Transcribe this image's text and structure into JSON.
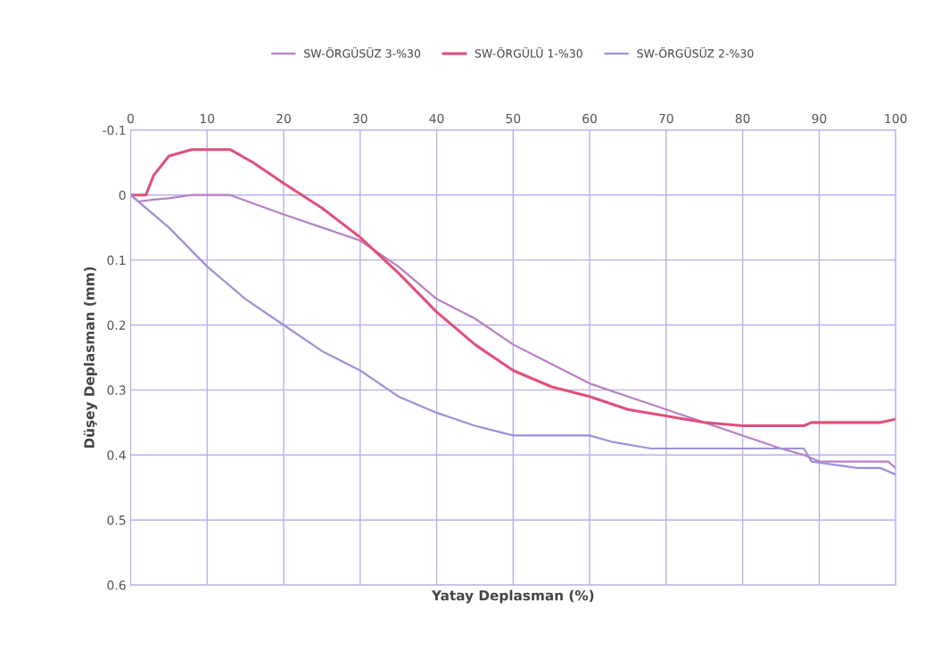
{
  "chart_data": {
    "type": "line",
    "xlabel": "Yatay Deplasman (%)",
    "ylabel": "Düşey Deplasman (mm)",
    "xlim": [
      0,
      100
    ],
    "xticks": [
      0,
      10,
      20,
      30,
      40,
      50,
      60,
      70,
      80,
      90,
      100
    ],
    "ylim": [
      0.6,
      -0.1
    ],
    "yticks": [
      -0.1,
      0,
      0.1,
      0.2,
      0.3,
      0.4,
      0.5,
      0.6
    ],
    "grid": true,
    "legend": "top",
    "marker": "none",
    "line_style": "solid",
    "series": [
      {
        "name": "SW-ÖRGÜSÜZ 3-%30",
        "color": "#b87fc4",
        "x": [
          0,
          1,
          3,
          5,
          8,
          13,
          20,
          25,
          30,
          35,
          40,
          45,
          50,
          55,
          60,
          65,
          70,
          75,
          80,
          85,
          88,
          90,
          95,
          99,
          100
        ],
        "values": [
          0,
          0.01,
          0.007,
          0.005,
          0,
          0,
          0.03,
          0.05,
          0.07,
          0.11,
          0.16,
          0.19,
          0.23,
          0.26,
          0.29,
          0.31,
          0.33,
          0.35,
          0.37,
          0.39,
          0.4,
          0.41,
          0.41,
          0.41,
          0.42
        ]
      },
      {
        "name": "SW-ÖRGÜLÜ 1-%30",
        "color": "#e0507a",
        "x": [
          0,
          2,
          3,
          5,
          8,
          13,
          16,
          20,
          25,
          30,
          35,
          40,
          45,
          50,
          55,
          60,
          65,
          70,
          75,
          80,
          88,
          89,
          98,
          100
        ],
        "values": [
          0,
          0,
          -0.03,
          -0.06,
          -0.07,
          -0.07,
          -0.05,
          -0.018,
          0.02,
          0.065,
          0.12,
          0.18,
          0.23,
          0.27,
          0.295,
          0.31,
          0.33,
          0.34,
          0.35,
          0.355,
          0.355,
          0.35,
          0.35,
          0.345
        ]
      },
      {
        "name": "SW-ÖRGÜSÜZ 2-%30",
        "color": "#9f8fd8",
        "x": [
          0,
          5,
          10,
          15,
          20,
          25,
          30,
          35,
          40,
          45,
          50,
          60,
          63,
          68,
          88,
          89,
          95,
          98,
          100
        ],
        "values": [
          0,
          0.05,
          0.11,
          0.16,
          0.2,
          0.24,
          0.27,
          0.31,
          0.335,
          0.355,
          0.37,
          0.37,
          0.38,
          0.39,
          0.39,
          0.41,
          0.42,
          0.42,
          0.43
        ]
      }
    ]
  }
}
